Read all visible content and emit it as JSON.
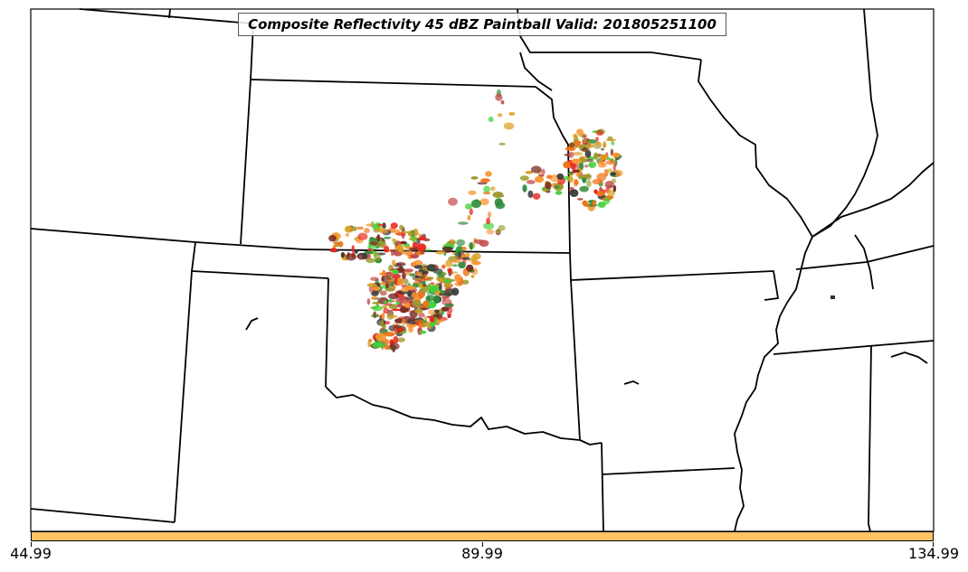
{
  "title": "Composite Reflectivity 45 dBZ Paintball Valid: 201805251100",
  "colorbar": {
    "color": "#fec466",
    "ticks": [
      "44.99",
      "89.99",
      "134.99"
    ]
  },
  "paint_colors": [
    "#e8241a",
    "#f0731a",
    "#fb9430",
    "#3fd23a",
    "#7a2a22",
    "#9c9c2f",
    "#c44a4a",
    "#3a3a3a",
    "#2e8a3a",
    "#d9a020"
  ]
}
